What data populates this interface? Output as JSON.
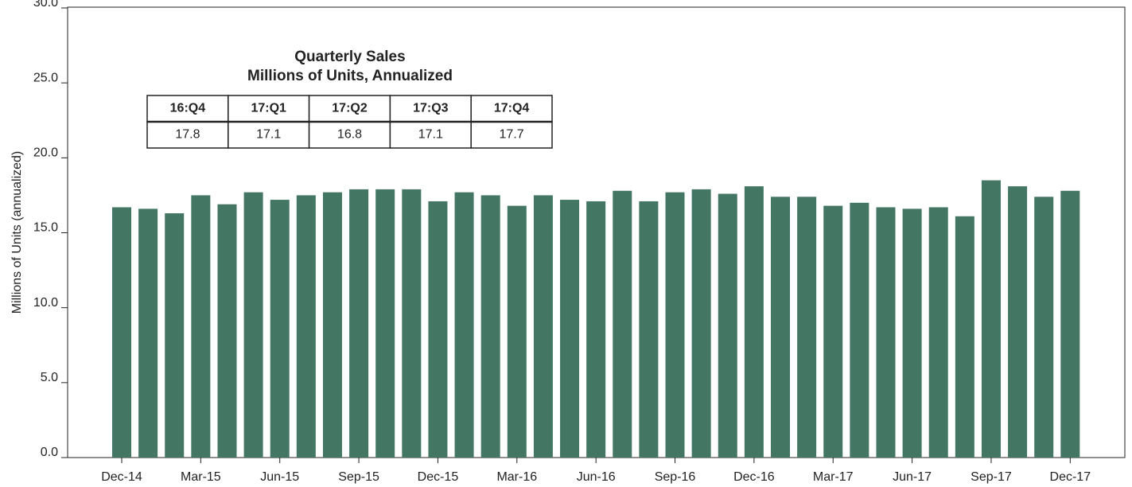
{
  "chart_data": {
    "type": "bar",
    "y_label": "Millions of Units (annualized)",
    "categories": [
      "Dec-14",
      null,
      null,
      "Mar-15",
      null,
      null,
      "Jun-15",
      null,
      null,
      "Sep-15",
      null,
      null,
      "Dec-15",
      null,
      null,
      "Mar-16",
      null,
      null,
      "Jun-16",
      null,
      null,
      "Sep-16",
      null,
      null,
      "Dec-16",
      null,
      null,
      "Mar-17",
      null,
      null,
      "Jun-17",
      null,
      null,
      "Sep-17",
      null,
      null,
      "Dec-17"
    ],
    "values": [
      16.7,
      16.6,
      16.3,
      17.5,
      16.9,
      17.7,
      17.2,
      17.5,
      17.7,
      17.9,
      17.9,
      17.9,
      17.1,
      17.7,
      17.5,
      16.8,
      17.5,
      17.2,
      17.1,
      17.8,
      17.1,
      17.7,
      17.9,
      17.6,
      18.1,
      17.4,
      17.4,
      16.8,
      17.0,
      16.7,
      16.6,
      16.7,
      16.1,
      18.5,
      18.1,
      17.4,
      17.8
    ],
    "color": "#437764",
    "ylim": [
      0,
      30
    ],
    "yticks": [
      {
        "value": 0,
        "label": "0.0"
      },
      {
        "value": 5,
        "label": "5.0"
      },
      {
        "value": 10,
        "label": "10.0"
      },
      {
        "value": 15,
        "label": "15.0"
      },
      {
        "value": 20,
        "label": "20.0"
      },
      {
        "value": 25,
        "label": "25.0"
      },
      {
        "value": 30,
        "label": "30.0"
      }
    ],
    "grid": false,
    "table": {
      "title": [
        "Quarterly Sales",
        "Millions of Units, Annualized"
      ],
      "headers": [
        "16:Q4",
        "17:Q1",
        "17:Q2",
        "17:Q3",
        "17:Q4"
      ],
      "values": [
        17.8,
        17.1,
        16.8,
        17.1,
        17.7
      ]
    }
  }
}
